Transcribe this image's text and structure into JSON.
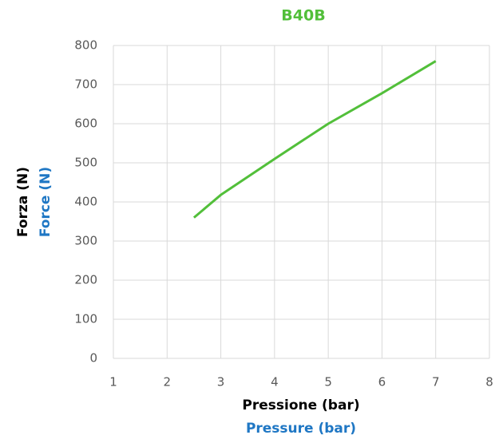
{
  "chart_data": {
    "type": "line",
    "title": "B40B",
    "xlabel": [
      "Pressione (bar)",
      "Pressure (bar)"
    ],
    "ylabel": [
      "Forza (N)",
      "Force (N)"
    ],
    "x": [
      2.5,
      3,
      4,
      5,
      6,
      7
    ],
    "series": [
      {
        "name": "B40B",
        "color": "#52bf3a",
        "values": [
          360,
          418,
          510,
          600,
          678,
          760
        ]
      }
    ],
    "xlim": [
      1,
      8
    ],
    "xticks": [
      1,
      2,
      3,
      4,
      5,
      6,
      7,
      8
    ],
    "ylim": [
      0,
      800
    ],
    "yticks": [
      0,
      100,
      200,
      300,
      400,
      500,
      600,
      700,
      800
    ],
    "grid": true
  }
}
